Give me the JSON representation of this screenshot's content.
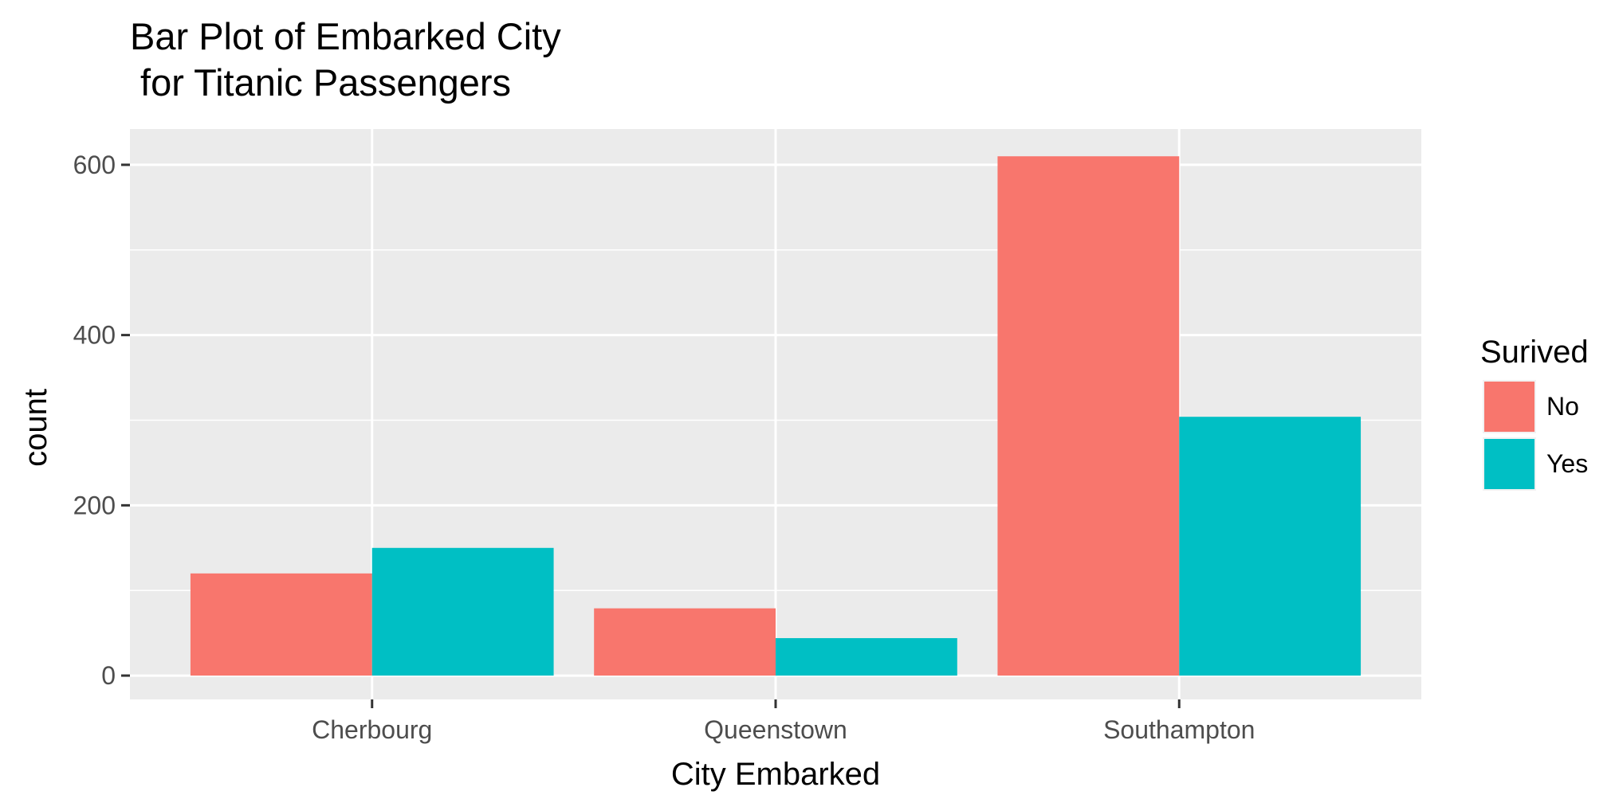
{
  "chart_data": {
    "type": "bar",
    "title_lines": [
      "Bar Plot of Embarked City",
      " for Titanic Passengers"
    ],
    "xlabel": "City Embarked",
    "ylabel": "count",
    "categories": [
      "Cherbourg",
      "Queenstown",
      "Southampton"
    ],
    "series": [
      {
        "name": "No",
        "values": [
          120,
          79,
          610
        ],
        "color": "#F8766D"
      },
      {
        "name": "Yes",
        "values": [
          150,
          44,
          304
        ],
        "color": "#00BFC4"
      }
    ],
    "ylim": [
      -28,
      642
    ],
    "y_ticks": [
      0,
      200,
      400,
      600
    ],
    "y_tick_labels": [
      "0",
      "200",
      "400",
      "600"
    ],
    "grid": true,
    "panel_background": "#EBEBEB",
    "legend": {
      "title": "Surived",
      "position": "right"
    }
  }
}
